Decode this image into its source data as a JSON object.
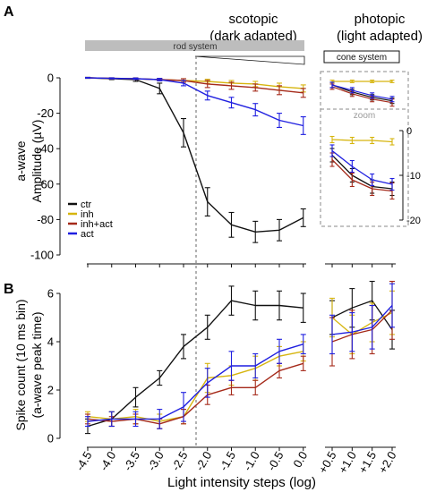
{
  "panel_labels": {
    "a": "A",
    "b": "B"
  },
  "headers": {
    "scotopic_line1": "scotopic",
    "scotopic_line2": "(dark adapted)",
    "photopic_line1": "photopic",
    "photopic_line2": "(light adapted)"
  },
  "bars": {
    "rod": "rod system",
    "cone": "cone system"
  },
  "zoom_label": "zoom",
  "x_axis": {
    "label": "Light intensity steps (log)",
    "scotopic_ticks": [
      "-4.5",
      "-4.0",
      "-3.5",
      "-3.0",
      "-2.5",
      "-2.0",
      "-1.5",
      "-1.0",
      "-0.5",
      "0.0"
    ],
    "photopic_ticks": [
      "+0.5",
      "+1.0",
      "+1.5",
      "+2.0"
    ]
  },
  "colors": {
    "ctr": "#111111",
    "inh": "#d6b50e",
    "inh+act": "#a52a1a",
    "act": "#1f1fe0"
  },
  "chart_data": [
    {
      "type": "line",
      "panel": "A",
      "ylabel_line1": "a-wave",
      "ylabel_line2": "Amplitude (µV)",
      "ylim": [
        -100,
        0
      ],
      "yticks": [
        "0",
        "-20",
        "-40",
        "-60",
        "-80",
        "-100"
      ],
      "x": [
        -4.5,
        -4.0,
        -3.5,
        -3.0,
        -2.5,
        -2.0,
        -1.5,
        -1.0,
        -0.5,
        0.0
      ],
      "legend": [
        "ctr",
        "inh",
        "inh+act",
        "act"
      ],
      "series": [
        {
          "name": "ctr",
          "values": [
            0,
            -0.5,
            -1,
            -6,
            -31,
            -70,
            -83,
            -87,
            -86,
            -79
          ],
          "errors": [
            0.3,
            0.5,
            1,
            3,
            8,
            8,
            7,
            6,
            6,
            5
          ]
        },
        {
          "name": "inh",
          "values": [
            0,
            -0.3,
            -0.5,
            -1,
            -1.5,
            -2,
            -3,
            -3.5,
            -5,
            -6
          ],
          "errors": [
            0.2,
            0.3,
            0.4,
            0.6,
            1,
            1.2,
            1.5,
            1.5,
            2,
            2
          ]
        },
        {
          "name": "inh+act",
          "values": [
            0,
            -0.3,
            -0.5,
            -1,
            -1.5,
            -3.5,
            -4.5,
            -5.5,
            -7,
            -8.5
          ],
          "errors": [
            0.2,
            0.3,
            0.4,
            0.6,
            1,
            2,
            2,
            2,
            2.5,
            2.5
          ]
        },
        {
          "name": "act",
          "values": [
            0,
            -0.3,
            -0.5,
            -1,
            -3,
            -10,
            -14,
            -18,
            -24,
            -27
          ],
          "errors": [
            0.2,
            0.3,
            0.4,
            0.7,
            1.5,
            2.5,
            3,
            3.5,
            4,
            5
          ]
        }
      ],
      "photopic": {
        "x": [
          0.5,
          1.0,
          1.5,
          2.0
        ],
        "series": [
          {
            "name": "ctr",
            "values": [
              -4,
              -8,
              -11,
              -13
            ],
            "errors": [
              1.5,
              1.5,
              1.5,
              1.5
            ]
          },
          {
            "name": "inh",
            "values": [
              -2,
              -2,
              -2,
              -2
            ],
            "errors": [
              0.7,
              0.7,
              0.7,
              0.7
            ]
          },
          {
            "name": "inh+act",
            "values": [
              -5,
              -9,
              -12,
              -14
            ],
            "errors": [
              1.5,
              1.5,
              1.5,
              2
            ]
          },
          {
            "name": "act",
            "values": [
              -4,
              -7,
              -10,
              -12
            ],
            "errors": [
              1.5,
              1.5,
              1.5,
              1.5
            ]
          }
        ]
      },
      "zoom_inset": {
        "ylim": [
          -20,
          0
        ],
        "yticks": [
          "0",
          "-10",
          "-20"
        ],
        "x": [
          0.5,
          1.0,
          1.5,
          2.0
        ],
        "series": [
          {
            "name": "ctr",
            "values": [
              -5.5,
              -10,
              -12.5,
              -13
            ],
            "errors": [
              1.5,
              1.5,
              1.5,
              1.5
            ]
          },
          {
            "name": "inh",
            "values": [
              -2,
              -2.2,
              -2.2,
              -2.5
            ],
            "errors": [
              0.7,
              0.7,
              0.7,
              0.7
            ]
          },
          {
            "name": "inh+act",
            "values": [
              -6.5,
              -11,
              -13,
              -13.5
            ],
            "errors": [
              1.5,
              1.5,
              1.5,
              1.8
            ]
          },
          {
            "name": "act",
            "values": [
              -4.5,
              -8,
              -11,
              -12
            ],
            "errors": [
              1.3,
              1.3,
              1.3,
              1.3
            ]
          }
        ]
      }
    },
    {
      "type": "line",
      "panel": "B",
      "ylabel_line1": "Spike count (10 ms bin)",
      "ylabel_line2": "(a-wave peak time)",
      "ylim": [
        0,
        6.5
      ],
      "yticks": [
        "0",
        "2",
        "4",
        "6"
      ],
      "x": [
        -4.5,
        -4.0,
        -3.5,
        -3.0,
        -2.5,
        -2.0,
        -1.5,
        -1.0,
        -0.5,
        0.0
      ],
      "series": [
        {
          "name": "ctr",
          "values": [
            0.5,
            0.8,
            1.7,
            2.5,
            3.8,
            4.6,
            5.7,
            5.5,
            5.5,
            5.4
          ],
          "errors": [
            0.3,
            0.3,
            0.4,
            0.3,
            0.5,
            0.5,
            0.6,
            0.6,
            0.6,
            0.6
          ]
        },
        {
          "name": "inh",
          "values": [
            0.9,
            0.8,
            0.9,
            0.7,
            0.9,
            2.5,
            2.6,
            2.9,
            3.4,
            3.6
          ],
          "errors": [
            0.2,
            0.3,
            0.3,
            0.3,
            0.3,
            0.6,
            0.4,
            0.5,
            0.4,
            0.4
          ]
        },
        {
          "name": "inh+act",
          "values": [
            0.8,
            0.7,
            0.8,
            0.6,
            0.9,
            1.8,
            2.1,
            2.1,
            2.8,
            3.1
          ],
          "errors": [
            0.2,
            0.2,
            0.2,
            0.2,
            0.3,
            0.4,
            0.3,
            0.3,
            0.3,
            0.3
          ]
        },
        {
          "name": "act",
          "values": [
            0.7,
            0.8,
            0.8,
            0.8,
            1.3,
            2.3,
            3.0,
            3.0,
            3.6,
            3.9
          ],
          "errors": [
            0.2,
            0.3,
            0.3,
            0.4,
            0.6,
            0.6,
            0.6,
            0.5,
            0.5,
            0.4
          ]
        }
      ],
      "photopic": {
        "x": [
          0.5,
          1.0,
          1.5,
          2.0
        ],
        "series": [
          {
            "name": "ctr",
            "values": [
              5.0,
              5.4,
              5.7,
              4.5
            ],
            "errors": [
              0.7,
              0.8,
              0.8,
              0.8
            ]
          },
          {
            "name": "inh",
            "values": [
              5.0,
              4.3,
              4.8,
              5.2
            ],
            "errors": [
              0.8,
              0.8,
              0.8,
              0.9
            ]
          },
          {
            "name": "inh+act",
            "values": [
              4.0,
              4.3,
              4.5,
              5.3
            ],
            "errors": [
              1.0,
              1.0,
              1.0,
              1.2
            ]
          },
          {
            "name": "act",
            "values": [
              4.3,
              4.4,
              4.6,
              5.5
            ],
            "errors": [
              0.8,
              0.8,
              0.9,
              0.9
            ]
          }
        ]
      }
    }
  ]
}
